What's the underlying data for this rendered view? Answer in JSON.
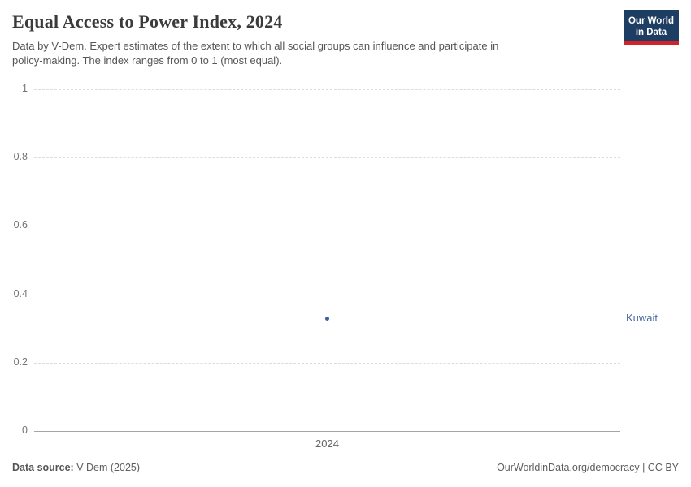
{
  "header": {
    "title": "Equal Access to Power Index, 2024",
    "subtitle_lines": [
      "Data by V-Dem. Expert estimates of the extent to which all social groups can influence and participate in",
      "policy-making. The index ranges from 0 to 1 (most equal)."
    ],
    "logo": {
      "line1": "Our World",
      "line2": "in Data",
      "bg_color": "#1d3d63",
      "accent_color": "#d0232a"
    }
  },
  "chart_data": {
    "type": "scatter",
    "title": "Equal Access to Power Index, 2024",
    "x": [
      2024
    ],
    "xticks": [
      "2024"
    ],
    "series": [
      {
        "name": "Kuwait",
        "values": [
          0.33
        ],
        "point_color": "#3b5fa3",
        "label_color": "#4c6a9c"
      }
    ],
    "ylim": [
      0,
      1
    ],
    "yticks": [
      0,
      0.2,
      0.4,
      0.6,
      0.8,
      1
    ],
    "xlabel": "",
    "ylabel": "",
    "grid": "horizontal-dashed",
    "legend_position": "entity-label-right"
  },
  "footer": {
    "source_label": "Data source:",
    "source_value": " V-Dem (2025)",
    "credit": "OurWorldinData.org/democracy | CC BY"
  }
}
